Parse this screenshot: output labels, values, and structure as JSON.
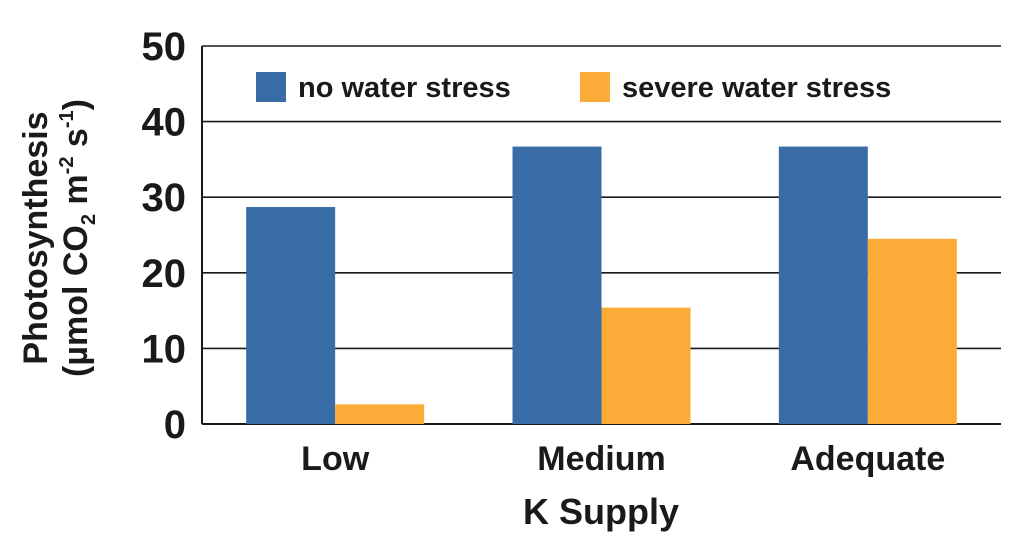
{
  "chart_data": {
    "type": "bar",
    "xlabel": "K Supply",
    "ylabel_line1": "Photosynthesis",
    "ylabel_line2": {
      "prefix": "(µmol CO",
      "sub": "2",
      "mid": " m",
      "sup1": "-2",
      "mid2": " s",
      "sup2": "-1",
      "suffix": ")"
    },
    "ylim": [
      0,
      50
    ],
    "yticks": [
      0,
      10,
      20,
      30,
      40,
      50
    ],
    "grid": true,
    "legend_position": "top",
    "categories": [
      "Low",
      "Medium",
      "Adequate"
    ],
    "series": [
      {
        "name": "no water stress",
        "color": "#386ca7",
        "values": [
          28.7,
          36.7,
          36.7
        ]
      },
      {
        "name": "severe water stress",
        "color": "#fbac38",
        "values": [
          2.6,
          15.4,
          24.5
        ]
      }
    ]
  }
}
